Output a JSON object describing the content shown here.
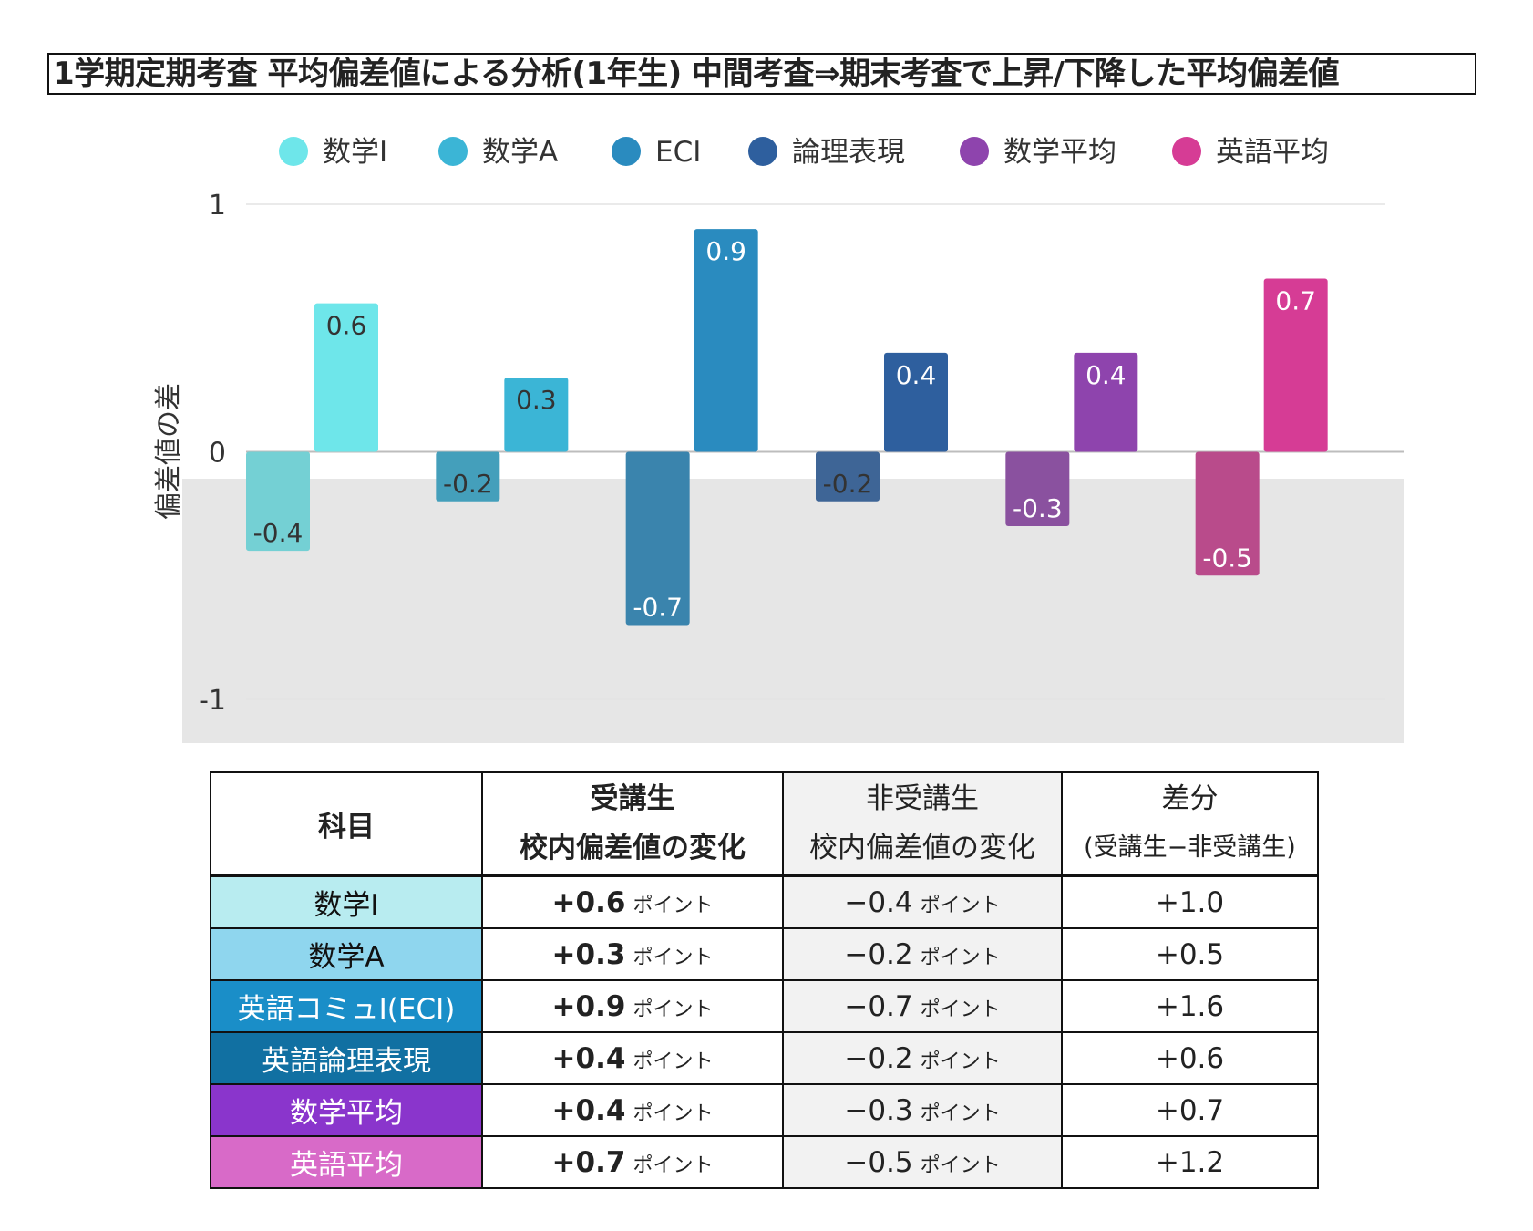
{
  "title": "1学期定期考査 平均偏差値による分析(1年生) 中間考査⇒期末考査で上昇/下降した平均偏差値",
  "chart_data": {
    "type": "bar",
    "ylabel": "偏差値の差",
    "ylim": [
      -1,
      1
    ],
    "yticks": [
      "1",
      "0",
      "-1"
    ],
    "legend_position": "top",
    "grid": true,
    "categories": [
      "数学I",
      "数学A",
      "ECI",
      "論理表現",
      "数学平均",
      "英語平均"
    ],
    "legend": [
      "数学I",
      "数学A",
      "ECI",
      "論理表現",
      "数学平均",
      "英語平均"
    ],
    "colors": [
      "#6ee6ea",
      "#3bb5d6",
      "#2a8bbf",
      "#2e5f9e",
      "#8e44ad",
      "#d63c95"
    ],
    "negative_colors": [
      "#74d0d4",
      "#449fbb",
      "#3a84ad",
      "#3e6596",
      "#8a519f",
      "#b94b8b"
    ],
    "non_participant_change": [
      -0.4,
      -0.2,
      -0.7,
      -0.2,
      -0.3,
      -0.5
    ],
    "participant_change": [
      0.6,
      0.3,
      0.9,
      0.4,
      0.4,
      0.7
    ],
    "non_participant_labels": [
      "-0.4",
      "-0.2",
      "-0.7",
      "-0.2",
      "-0.3",
      "-0.5"
    ],
    "participant_labels": [
      "0.6",
      "0.3",
      "0.9",
      "0.4",
      "0.4",
      "0.7"
    ]
  },
  "table": {
    "header": {
      "subject": "科目",
      "participant_l1": "受講生",
      "participant_l2": "校内偏差値の変化",
      "nonparticipant_l1": "非受講生",
      "nonparticipant_l2": "校内偏差値の変化",
      "diff_l1": "差分",
      "diff_l2": "(受講生−非受講生)"
    },
    "unit": "ポイント",
    "rows": [
      {
        "subject": "数学Ⅰ",
        "participant": "+0.6",
        "nonparticipant": "−0.4",
        "diff": "+1.0",
        "color": "#b8ecf0",
        "light_text": false
      },
      {
        "subject": "数学A",
        "participant": "+0.3",
        "nonparticipant": "−0.2",
        "diff": "+0.5",
        "color": "#8fd6ee",
        "light_text": false
      },
      {
        "subject": "英語コミュⅠ(ECI)",
        "participant": "+0.9",
        "nonparticipant": "−0.7",
        "diff": "+1.6",
        "color": "#1a8ec8",
        "light_text": true
      },
      {
        "subject": "英語論理表現",
        "participant": "+0.4",
        "nonparticipant": "−0.2",
        "diff": "+0.6",
        "color": "#1170a2",
        "light_text": true
      },
      {
        "subject": "数学平均",
        "participant": "+0.4",
        "nonparticipant": "−0.3",
        "diff": "+0.7",
        "color": "#8a35cc",
        "light_text": true
      },
      {
        "subject": "英語平均",
        "participant": "+0.7",
        "nonparticipant": "−0.5",
        "diff": "+1.2",
        "color": "#d86ac8",
        "light_text": true
      }
    ]
  }
}
